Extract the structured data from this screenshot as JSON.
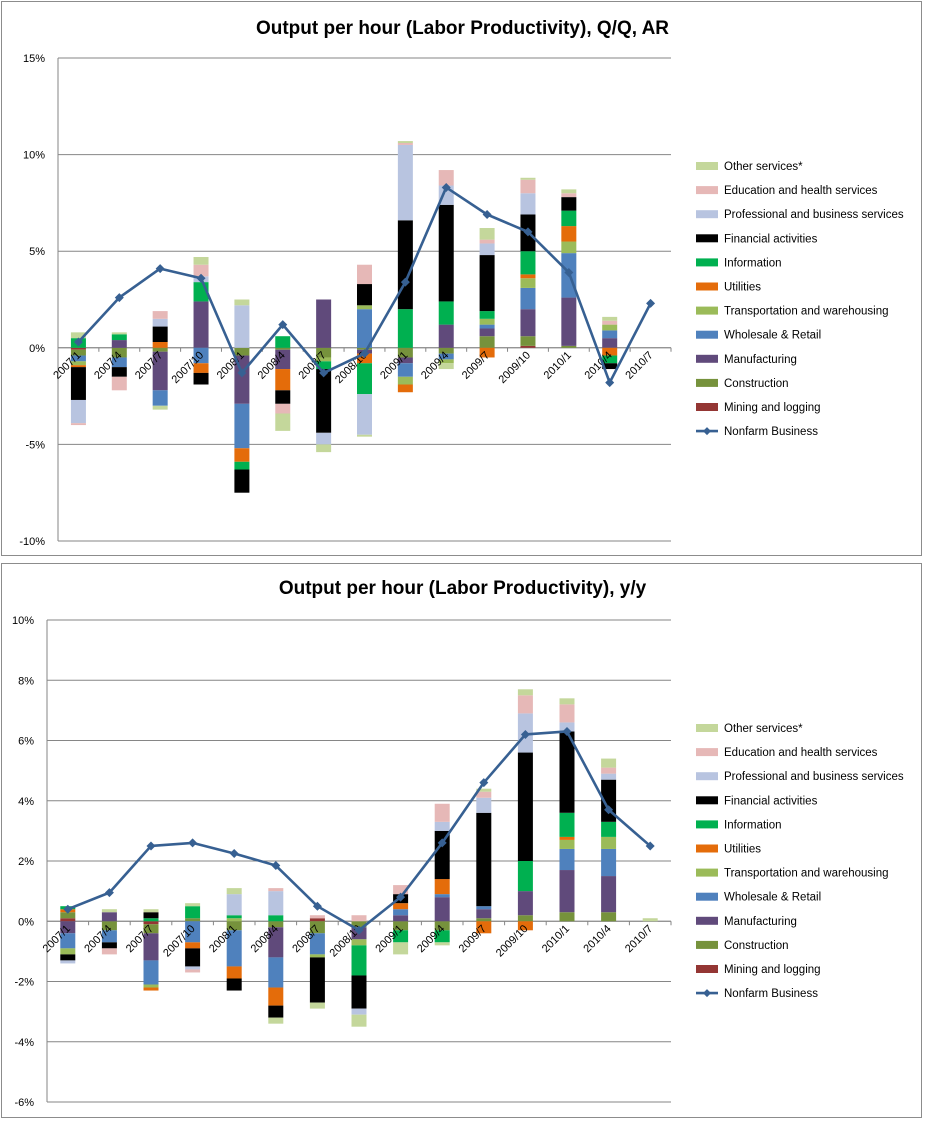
{
  "colors": {
    "Other services*": "#c4d79b",
    "Education and health services": "#e6b8b7",
    "Professional and business services": "#b8c4e0",
    "Financial activities": "#000000",
    "Information": "#00b050",
    "Utilities": "#e46c0a",
    "Transportation and warehousing": "#9bbb59",
    "Wholesale & Retail": "#4f81bd",
    "Manufacturing": "#604a7b",
    "Construction": "#76923c",
    "Mining and logging": "#943634",
    "Nonfarm Business": "#376092"
  },
  "chart_data": [
    {
      "type": "bar",
      "stacked": true,
      "title": "Output per hour (Labor Productivity), Q/Q, AR",
      "xlabel": "",
      "ylabel": "",
      "ylim": [
        -10,
        15
      ],
      "yticks": [
        -10,
        -5,
        0,
        5,
        10,
        15
      ],
      "ytick_labels": [
        "-10%",
        "-5%",
        "0%",
        "5%",
        "10%",
        "15%"
      ],
      "categories": [
        "2007/1",
        "2007/4",
        "2007/7",
        "2007/10",
        "2008/1",
        "2008/4",
        "2008/7",
        "2008/10",
        "2009/1",
        "2009/4",
        "2009/7",
        "2009/10",
        "2010/1",
        "2010/4",
        "2010/7"
      ],
      "series": [
        {
          "name": "Mining and logging",
          "values": [
            -0.1,
            0,
            0,
            0,
            0,
            0,
            0,
            0,
            0,
            0,
            0,
            0.1,
            0,
            0,
            0
          ]
        },
        {
          "name": "Construction",
          "values": [
            -0.3,
            -0.5,
            -0.2,
            0,
            -0.4,
            -0.1,
            -0.5,
            -0.1,
            -0.5,
            -0.3,
            0.6,
            0.5,
            0.1,
            0,
            0
          ]
        },
        {
          "name": "Manufacturing",
          "values": [
            0,
            0.4,
            -2.0,
            2.4,
            -2.5,
            -1.0,
            2.5,
            -0.2,
            -0.3,
            1.2,
            0.4,
            1.4,
            2.5,
            0.5,
            0
          ]
        },
        {
          "name": "Wholesale & Retail",
          "values": [
            -0.3,
            -0.5,
            -0.8,
            -0.8,
            -2.3,
            0,
            0,
            2.0,
            -0.7,
            -0.3,
            0.2,
            1.1,
            2.3,
            0.4,
            0
          ]
        },
        {
          "name": "Transportation and warehousing",
          "values": [
            -0.2,
            0,
            0,
            0,
            0,
            0,
            -0.2,
            0.2,
            -0.4,
            -0.2,
            0.3,
            0.5,
            0.6,
            0.3,
            0
          ]
        },
        {
          "name": "Utilities",
          "values": [
            -0.1,
            0,
            0.3,
            -0.5,
            -0.7,
            -1.1,
            0,
            -0.5,
            -0.4,
            0,
            -0.5,
            0.2,
            0.8,
            -0.4,
            0
          ]
        },
        {
          "name": "Information",
          "values": [
            0.5,
            0.3,
            0,
            1.0,
            -0.4,
            0.6,
            -0.4,
            -1.6,
            2.0,
            1.2,
            0.4,
            1.2,
            0.8,
            -0.4,
            0
          ]
        },
        {
          "name": "Financial activities",
          "values": [
            -1.7,
            -0.5,
            0.8,
            -0.6,
            -1.2,
            -0.7,
            -3.3,
            1.1,
            4.6,
            5.0,
            2.9,
            1.9,
            0.7,
            -0.3,
            0
          ]
        },
        {
          "name": "Professional and business services",
          "values": [
            -1.2,
            0,
            0.4,
            0.3,
            2.2,
            0,
            -0.6,
            -2.1,
            3.9,
            1.0,
            0.6,
            1.1,
            0,
            0,
            0
          ]
        },
        {
          "name": "Education and health services",
          "values": [
            -0.1,
            -0.7,
            0.4,
            0.6,
            0,
            -0.5,
            0,
            1.0,
            0.1,
            0.8,
            0.2,
            0.7,
            0.2,
            0.2,
            0
          ]
        },
        {
          "name": "Other services*",
          "values": [
            0.3,
            0.1,
            -0.2,
            0.4,
            0.3,
            -0.9,
            -0.4,
            -0.1,
            0.1,
            -0.3,
            0.6,
            0.1,
            0.2,
            0.2,
            0
          ]
        }
      ],
      "line": {
        "name": "Nonfarm Business",
        "values": [
          0.3,
          2.6,
          4.1,
          3.6,
          -1.3,
          1.2,
          -1.3,
          -0.3,
          3.4,
          8.3,
          6.9,
          6.0,
          3.9,
          -1.8,
          2.3
        ]
      }
    },
    {
      "type": "bar",
      "stacked": true,
      "title": "Output per hour (Labor Productivity), y/y",
      "xlabel": "",
      "ylabel": "",
      "ylim": [
        -6,
        10
      ],
      "yticks": [
        -6,
        -4,
        -2,
        0,
        2,
        4,
        6,
        8,
        10
      ],
      "ytick_labels": [
        "-6%",
        "-4%",
        "-2%",
        "0%",
        "2%",
        "4%",
        "6%",
        "8%",
        "10%"
      ],
      "categories": [
        "2007/1",
        "2007/4",
        "2007/7",
        "2007/10",
        "2008/1",
        "2008/4",
        "2008/7",
        "2008/10",
        "2009/1",
        "2009/4",
        "2009/7",
        "2009/10",
        "2010/1",
        "2010/4",
        "2010/7"
      ],
      "series": [
        {
          "name": "Mining and logging",
          "values": [
            0.1,
            0,
            -0.1,
            0,
            0,
            0,
            0.1,
            0,
            0,
            0,
            0,
            0,
            0,
            0,
            0
          ]
        },
        {
          "name": "Construction",
          "values": [
            0.2,
            -0.3,
            -0.3,
            0.1,
            -0.3,
            -0.2,
            -0.4,
            -0.2,
            -0.3,
            -0.3,
            0.1,
            0.2,
            0.3,
            0.3,
            0
          ]
        },
        {
          "name": "Manufacturing",
          "values": [
            -0.4,
            0.3,
            -0.9,
            0,
            0,
            -1.0,
            0,
            -0.4,
            0.2,
            0.8,
            0.3,
            0.8,
            1.4,
            1.2,
            0
          ]
        },
        {
          "name": "Wholesale & Retail",
          "values": [
            -0.5,
            -0.4,
            -0.8,
            -0.7,
            -1.2,
            -1.0,
            -0.7,
            0,
            0.2,
            0.1,
            0.1,
            0,
            0.7,
            0.9,
            0
          ]
        },
        {
          "name": "Transportation and warehousing",
          "values": [
            -0.2,
            0,
            -0.1,
            0,
            0.1,
            0,
            -0.1,
            -0.2,
            0,
            0,
            0,
            0,
            0.3,
            0.4,
            0
          ]
        },
        {
          "name": "Utilities",
          "values": [
            0.1,
            0,
            -0.1,
            -0.2,
            -0.4,
            -0.6,
            0,
            0,
            0.2,
            0.5,
            -0.4,
            -0.3,
            0.1,
            0,
            0
          ]
        },
        {
          "name": "Information",
          "values": [
            0.1,
            0,
            0.1,
            0.4,
            0.1,
            0.2,
            0,
            -1.0,
            -0.4,
            -0.4,
            0,
            1.0,
            0.8,
            0.5,
            0
          ]
        },
        {
          "name": "Financial activities",
          "values": [
            -0.2,
            -0.2,
            0.2,
            -0.6,
            -0.4,
            -0.4,
            -1.5,
            -1.1,
            0.3,
            1.6,
            3.1,
            3.6,
            2.7,
            1.4,
            0
          ]
        },
        {
          "name": "Professional and business services",
          "values": [
            -0.1,
            0,
            0,
            -0.1,
            0.7,
            0.8,
            0,
            -0.2,
            0,
            0.3,
            0.5,
            1.3,
            0.3,
            0.2,
            0
          ]
        },
        {
          "name": "Education and health services",
          "values": [
            0,
            -0.2,
            0,
            -0.1,
            0,
            0.1,
            0.1,
            0.2,
            0.3,
            0.6,
            0.2,
            0.6,
            0.6,
            0.2,
            0
          ]
        },
        {
          "name": "Other services*",
          "values": [
            0,
            0.1,
            0.1,
            0.1,
            0.2,
            -0.2,
            -0.2,
            -0.4,
            -0.4,
            -0.1,
            0.1,
            0.2,
            0.2,
            0.3,
            0.1
          ]
        }
      ],
      "line": {
        "name": "Nonfarm Business",
        "values": [
          0.4,
          0.95,
          2.5,
          2.6,
          2.25,
          1.85,
          0.5,
          -0.3,
          0.8,
          2.6,
          4.6,
          6.2,
          6.3,
          3.7,
          2.5
        ]
      }
    }
  ]
}
